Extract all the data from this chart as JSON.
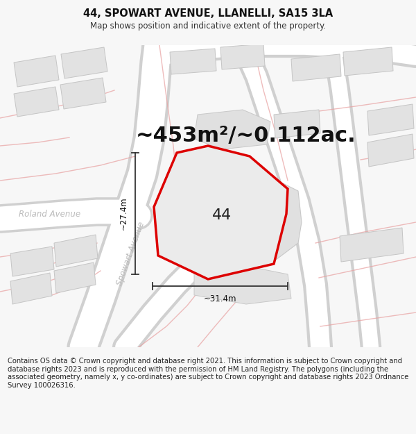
{
  "title": "44, SPOWART AVENUE, LLANELLI, SA15 3LA",
  "subtitle": "Map shows position and indicative extent of the property.",
  "area_text": "~453m²/~0.112ac.",
  "number_label": "44",
  "dim_vertical": "~27.4m",
  "dim_horizontal": "~31.4m",
  "street_label_1": "Roland Avenue",
  "street_label_2": "Spowart Avenue",
  "footer_text": "Contains OS data © Crown copyright and database right 2021. This information is subject to Crown copyright and database rights 2023 and is reproduced with the permission of HM Land Registry. The polygons (including the associated geometry, namely x, y co-ordinates) are subject to Crown copyright and database rights 2023 Ordnance Survey 100026316.",
  "bg_color": "#f7f7f7",
  "map_bg": "#eeeeee",
  "plot_fill": "#e8e8e8",
  "plot_edge": "#dd0000",
  "building_fill": "#e2e2e2",
  "building_edge": "#c5c5c5",
  "road_color": "#ffffff",
  "road_edge": "#d0d0d0",
  "dim_line_color": "#333333",
  "pink_line_color": "#e8a0a0",
  "street_color": "#bbbbbb",
  "title_fontsize": 10.5,
  "subtitle_fontsize": 8.5,
  "area_fontsize": 22,
  "label_fontsize": 16,
  "dim_fontsize": 8.5,
  "street_fontsize": 8.5,
  "footer_fontsize": 7.2
}
